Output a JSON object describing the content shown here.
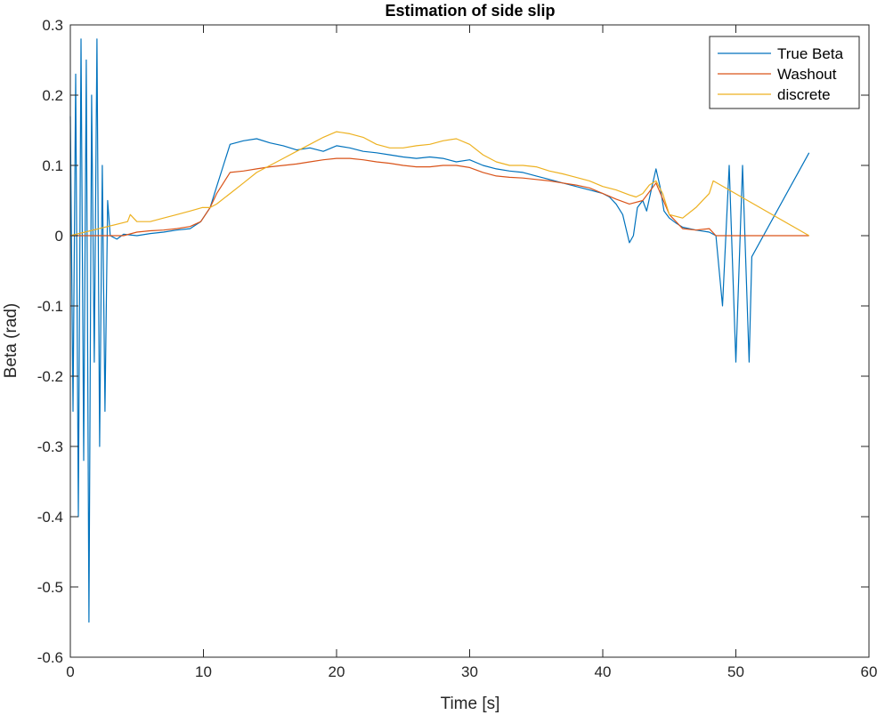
{
  "chart_data": {
    "type": "line",
    "title": "Estimation of side slip",
    "xlabel": "Time [s]",
    "ylabel": "Beta (rad)",
    "xlim": [
      0,
      60
    ],
    "ylim": [
      -0.6,
      0.3
    ],
    "xticks": [
      0,
      10,
      20,
      30,
      40,
      50,
      60
    ],
    "yticks": [
      -0.6,
      -0.5,
      -0.4,
      -0.3,
      -0.2,
      -0.1,
      0,
      0.1,
      0.2,
      0.3
    ],
    "xtick_labels": [
      "0",
      "10",
      "20",
      "30",
      "40",
      "50",
      "60"
    ],
    "ytick_labels": [
      "-0.6",
      "-0.5",
      "-0.4",
      "-0.3",
      "-0.2",
      "-0.1",
      "0",
      "0.1",
      "0.2",
      "0.3"
    ],
    "grid": false,
    "legend_position": "top-right",
    "series": [
      {
        "name": "True Beta",
        "color": "#0072BD",
        "x": [
          0,
          0.2,
          0.4,
          0.6,
          0.8,
          1.0,
          1.2,
          1.4,
          1.6,
          1.8,
          2.0,
          2.2,
          2.4,
          2.6,
          2.8,
          3.0,
          3.5,
          4,
          5,
          6,
          7,
          8,
          9,
          9.8,
          10.5,
          11,
          11.5,
          12,
          13,
          14,
          15,
          16,
          17,
          18,
          19,
          20,
          21,
          22,
          23,
          24,
          25,
          26,
          27,
          28,
          29,
          30,
          31,
          32,
          33,
          34,
          35,
          36,
          37,
          38,
          39,
          40,
          40.5,
          41,
          41.5,
          42,
          42.3,
          42.6,
          43,
          43.3,
          43.7,
          44,
          44.3,
          44.6,
          45,
          45.5,
          46,
          47,
          48,
          48.5,
          49,
          49.5,
          50,
          50.5,
          51,
          51.2,
          55.5
        ],
        "y": [
          0.17,
          -0.25,
          0.23,
          -0.4,
          0.28,
          -0.32,
          0.25,
          -0.55,
          0.2,
          -0.18,
          0.28,
          -0.3,
          0.1,
          -0.25,
          0.05,
          0.0,
          -0.005,
          0.002,
          0.0,
          0.003,
          0.005,
          0.008,
          0.01,
          0.02,
          0.04,
          0.07,
          0.1,
          0.13,
          0.135,
          0.138,
          0.132,
          0.128,
          0.122,
          0.125,
          0.12,
          0.128,
          0.125,
          0.12,
          0.118,
          0.115,
          0.112,
          0.11,
          0.112,
          0.11,
          0.105,
          0.108,
          0.1,
          0.095,
          0.092,
          0.09,
          0.085,
          0.08,
          0.075,
          0.07,
          0.065,
          0.06,
          0.055,
          0.045,
          0.03,
          -0.01,
          0.0,
          0.04,
          0.05,
          0.035,
          0.07,
          0.095,
          0.07,
          0.035,
          0.025,
          0.018,
          0.012,
          0.008,
          0.005,
          0.0,
          -0.1,
          0.1,
          -0.18,
          0.1,
          -0.18,
          -0.03,
          0.118
        ]
      },
      {
        "name": "Washout",
        "color": "#D95319",
        "x": [
          0,
          3,
          4,
          5,
          6,
          7,
          8,
          9,
          9.8,
          10.5,
          11,
          11.5,
          12,
          13,
          14,
          15,
          16,
          17,
          18,
          19,
          20,
          21,
          22,
          23,
          24,
          25,
          26,
          27,
          28,
          29,
          30,
          31,
          32,
          33,
          34,
          35,
          36,
          37,
          38,
          39,
          40,
          41,
          42,
          43,
          44,
          45,
          46,
          47,
          48,
          48.5,
          55.5
        ],
        "y": [
          0,
          0,
          0,
          0.005,
          0.007,
          0.008,
          0.01,
          0.013,
          0.02,
          0.04,
          0.06,
          0.075,
          0.09,
          0.092,
          0.095,
          0.098,
          0.1,
          0.102,
          0.105,
          0.108,
          0.11,
          0.11,
          0.108,
          0.105,
          0.103,
          0.1,
          0.098,
          0.098,
          0.1,
          0.1,
          0.097,
          0.09,
          0.085,
          0.083,
          0.082,
          0.08,
          0.078,
          0.075,
          0.072,
          0.068,
          0.06,
          0.052,
          0.045,
          0.05,
          0.075,
          0.03,
          0.01,
          0.008,
          0.01,
          0.0,
          0.0
        ]
      },
      {
        "name": "discrete",
        "color": "#EDB120",
        "x": [
          0,
          4.3,
          4.5,
          5,
          6,
          7,
          8,
          9,
          9.9,
          10.5,
          11,
          12,
          13,
          14,
          15,
          16,
          17,
          18,
          19,
          20,
          21,
          22,
          23,
          24,
          25,
          26,
          27,
          28,
          29,
          30,
          31,
          32,
          33,
          34,
          35,
          36,
          37,
          38,
          39,
          40,
          41,
          42,
          42.5,
          43,
          43.5,
          44,
          44.5,
          45,
          46,
          47,
          48,
          48.3,
          55.5
        ],
        "y": [
          0,
          0.02,
          0.03,
          0.02,
          0.02,
          0.025,
          0.03,
          0.035,
          0.04,
          0.04,
          0.045,
          0.06,
          0.075,
          0.09,
          0.1,
          0.11,
          0.12,
          0.13,
          0.14,
          0.148,
          0.145,
          0.14,
          0.13,
          0.125,
          0.125,
          0.128,
          0.13,
          0.135,
          0.138,
          0.13,
          0.115,
          0.105,
          0.1,
          0.1,
          0.098,
          0.092,
          0.088,
          0.083,
          0.078,
          0.07,
          0.065,
          0.058,
          0.055,
          0.06,
          0.072,
          0.078,
          0.06,
          0.03,
          0.025,
          0.04,
          0.06,
          0.078,
          0.0
        ]
      }
    ]
  }
}
